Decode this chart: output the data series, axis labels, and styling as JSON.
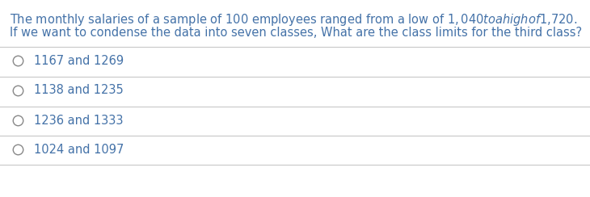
{
  "question_line1": "The monthly salaries of a sample of 100 employees ranged from a low of $1,040 to a high of $1,720.",
  "question_line2": "If we want to condense the data into seven classes, What are the class limits for the third class?",
  "question_color": "#4472A8",
  "options": [
    "1167 and 1269",
    "1138 and 1235",
    "1236 and 1333",
    "1024 and 1097"
  ],
  "option_color": "#4472A8",
  "bg_color": "#ffffff",
  "divider_color": "#c8c8c8",
  "circle_edgecolor": "#888888",
  "question_fontsize": 10.5,
  "option_fontsize": 10.5
}
